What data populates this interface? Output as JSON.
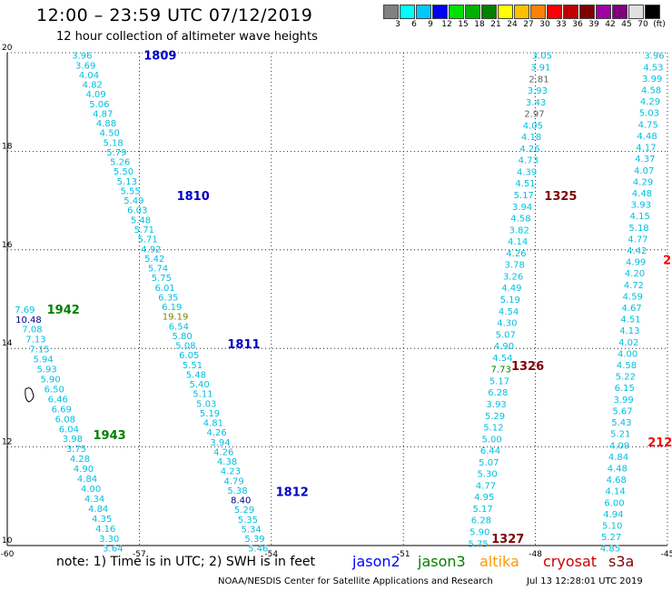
{
  "header": {
    "title": "12:00 – 23:59 UTC 07/12/2019",
    "subtitle": "12 hour collection of altimeter wave heights"
  },
  "colorbar": {
    "colors": [
      "#808080",
      "#00ffff",
      "#00c8ff",
      "#0000ff",
      "#00e000",
      "#00b000",
      "#008000",
      "#ffff00",
      "#ffc000",
      "#ff8000",
      "#ff0000",
      "#c00000",
      "#800000",
      "#a000a0",
      "#800080",
      "#e0e0e0",
      "#000000"
    ],
    "labels": [
      "3",
      "6",
      "9",
      "12",
      "15",
      "18",
      "21",
      "24",
      "27",
      "30",
      "33",
      "36",
      "39",
      "42",
      "45",
      "70",
      "(ft)"
    ]
  },
  "map": {
    "lon_ticks": [
      "-60",
      "-57",
      "-54",
      "-51",
      "-48",
      "-45"
    ],
    "lat_ticks": [
      "20",
      "18",
      "16",
      "14",
      "12",
      "10"
    ],
    "lon_range": [
      -60,
      -45
    ],
    "lat_range": [
      10,
      20
    ],
    "grid": "dotted",
    "tracks": [
      {
        "id": "1809",
        "color": "#00bfe0",
        "label_color": "#0000cc",
        "label": "1809",
        "label_at": [
          -56.9,
          19.95
        ],
        "values": [
          "3.96",
          "3.69",
          "4.04",
          "4.82",
          "4.09",
          "5.06",
          "4.87",
          "4.88",
          "4.50",
          "5.18",
          "5.79",
          "5.26",
          "5.50",
          "5.13",
          "5.55",
          "5.49",
          "6.03",
          "5.48",
          "5.71",
          "5.71",
          "4.92",
          "5.42",
          "5.74",
          "5.75",
          "6.01",
          "6.35",
          "6.19",
          "19.19",
          "6.54",
          "5.80",
          "5.08",
          "6.05",
          "5.51",
          "5.48",
          "5.40",
          "5.11",
          "5.03",
          "5.19",
          "4.81",
          "4.26",
          "3.94",
          "4.26",
          "4.38",
          "4.23",
          "4.79",
          "5.38",
          "8.40",
          "5.29",
          "5.35",
          "5.34",
          "5.39",
          "5.46"
        ],
        "start": [
          -58.3,
          19.95
        ],
        "end": [
          -54.3,
          9.95
        ],
        "special": {
          "27": "#808000",
          "46": "#000080"
        }
      },
      {
        "id": "1810",
        "color": "#00bfe0",
        "label_color": "#0000cc",
        "label": "1810",
        "label_at": [
          -56.15,
          17.1
        ]
      },
      {
        "id": "1811",
        "color": "#00bfe0",
        "label_color": "#0000cc",
        "label": "1811",
        "label_at": [
          -55.0,
          14.1
        ]
      },
      {
        "id": "1812",
        "color": "#00bfe0",
        "label_color": "#0000cc",
        "label": "1812",
        "label_at": [
          -53.9,
          11.1
        ]
      },
      {
        "id": "1942",
        "color": "#00bfe0",
        "label_color": "#008000",
        "label": "1942",
        "label_at": [
          -59.1,
          14.8
        ],
        "values": [
          "7.69",
          "10.48",
          "7.08",
          "7.13",
          "7.15",
          "5.94",
          "5.93",
          "5.90",
          "6.50",
          "6.46",
          "6.69",
          "6.08",
          "6.04",
          "3.98",
          "3.75",
          "4.28",
          "4.90",
          "4.84",
          "4.00",
          "4.34",
          "4.84",
          "4.35",
          "4.16",
          "3.30",
          "3.64"
        ],
        "start": [
          -59.6,
          14.8
        ],
        "end": [
          -57.6,
          9.95
        ],
        "special": {
          "1": "#000080"
        }
      },
      {
        "id": "1943",
        "color": "#00bfe0",
        "label_color": "#008000",
        "label": "1943",
        "label_at": [
          -58.05,
          12.25
        ]
      },
      {
        "id": "1325",
        "color": "#00bfe0",
        "label_color": "#800000",
        "label": "1325",
        "label_at": [
          -47.8,
          17.1
        ],
        "values": [
          "3.05",
          "3.91",
          "2.81",
          "3.93",
          "3.43",
          "2.97",
          "4.05",
          "4.18",
          "4.26",
          "4.73",
          "4.39",
          "4.51",
          "5.17",
          "3.94",
          "4.58",
          "3.82",
          "4.14",
          "4.26",
          "3.78",
          "3.26",
          "4.49",
          "5.19",
          "4.54",
          "4.30",
          "5.07",
          "4.90",
          "4.54",
          "7.73",
          "5.17",
          "6.28",
          "3.93",
          "5.29",
          "5.12",
          "5.00",
          "6.44",
          "5.07",
          "5.30",
          "4.77",
          "4.95",
          "5.17",
          "6.28",
          "5.90",
          "5.75"
        ],
        "start": [
          -47.85,
          19.95
        ],
        "end": [
          -49.3,
          10.05
        ],
        "special": {
          "2": "#606060",
          "5": "#606060",
          "27": "#008000"
        }
      },
      {
        "id": "1326",
        "color": "#00bfe0",
        "label_color": "#800000",
        "label": "1326",
        "label_at": [
          -48.55,
          13.65
        ]
      },
      {
        "id": "1327",
        "color": "#00bfe0",
        "label_color": "#800000",
        "label": "1327",
        "label_at": [
          -49.0,
          10.15
        ]
      },
      {
        "id": "s3a",
        "color": "#00bfe0",
        "label_color": "#ff0000",
        "label": "2",
        "label_at": [
          -45.1,
          15.8
        ],
        "values": [
          "3.96",
          "4.53",
          "3.99",
          "4.58",
          "4.29",
          "5.03",
          "4.75",
          "4.48",
          "4.17",
          "4.37",
          "4.07",
          "4.29",
          "4.48",
          "3.93",
          "4.15",
          "5.18",
          "4.77",
          "4.42",
          "4.99",
          "4.20",
          "4.72",
          "4.59",
          "4.67",
          "4.51",
          "4.13",
          "4.02",
          "4.00",
          "4.58",
          "5.22",
          "6.15",
          "3.99",
          "5.67",
          "5.43",
          "5.21",
          "4.09",
          "4.84",
          "4.48",
          "4.68",
          "4.14",
          "6.00",
          "4.94",
          "5.10",
          "5.27",
          "4.85"
        ],
        "start": [
          -45.3,
          19.95
        ],
        "end": [
          -46.3,
          9.95
        ]
      },
      {
        "id": "s3a-2",
        "color": "#00bfe0",
        "label_color": "#ff0000",
        "label": "212",
        "label_at": [
          -45.45,
          12.1
        ]
      }
    ],
    "marker_symbol": "island-outline"
  },
  "legend": {
    "note": "note:  1) Time is in UTC;  2) SWH is in feet",
    "satellites": [
      {
        "name": "jason2",
        "color": "#0000ff"
      },
      {
        "name": "jason3",
        "color": "#008000"
      },
      {
        "name": "altika",
        "color": "#ff9900"
      },
      {
        "name": "cryosat",
        "color": "#cc0000"
      },
      {
        "name": "s3a",
        "color": "#800000"
      }
    ]
  },
  "footer": {
    "credit": "NOAA/NESDIS Center for Satellite Applications and Research",
    "timestamp": "Jul 13 12:28:01 UTC 2019"
  }
}
